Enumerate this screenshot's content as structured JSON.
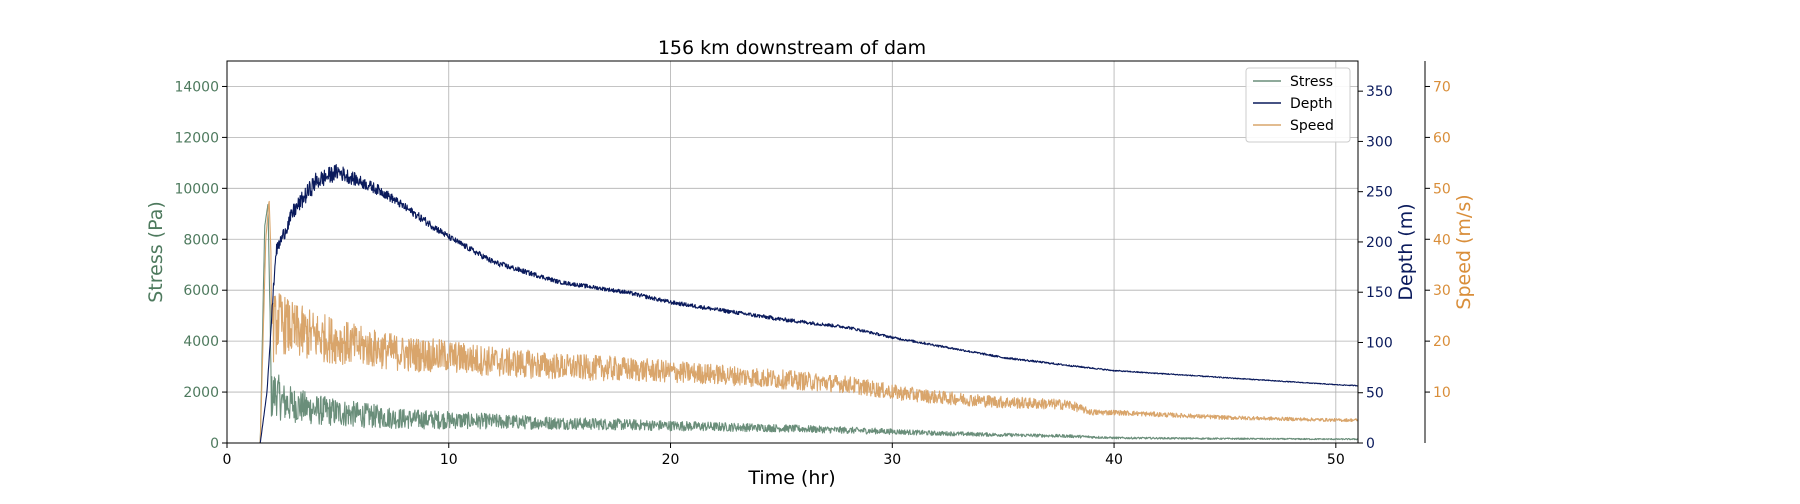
{
  "chart_data": {
    "type": "line",
    "title": "156 km downstream of dam",
    "xlabel": "Time (hr)",
    "xlim": [
      0,
      51
    ],
    "xticks": [
      0,
      10,
      20,
      30,
      40,
      50
    ],
    "grid": true,
    "legend": {
      "placement": "top-right",
      "entries": [
        "Stress",
        "Depth",
        "Speed"
      ]
    },
    "axes": {
      "stress": {
        "label": "Stress (Pa)",
        "color": "#4e7a5e",
        "lim": [
          0,
          15000
        ],
        "ticks": [
          0,
          2000,
          4000,
          6000,
          8000,
          10000,
          12000,
          14000
        ]
      },
      "depth": {
        "label": "Depth (m)",
        "color": "#0a1a5c",
        "lim": [
          0,
          380
        ],
        "ticks": [
          0,
          50,
          100,
          150,
          200,
          250,
          300,
          350
        ]
      },
      "speed": {
        "label": "Speed (m/s)",
        "color": "#d98e3a",
        "lim": [
          0,
          75
        ],
        "ticks": [
          10,
          20,
          30,
          40,
          50,
          60,
          70
        ]
      }
    },
    "series": [
      {
        "name": "Stress",
        "axis": "stress",
        "color": "#6a8e7a",
        "x": [
          0,
          1.5,
          1.7,
          1.85,
          2.0,
          2.2,
          2.5,
          3,
          4,
          5,
          6,
          8,
          10,
          12,
          15,
          18,
          20,
          22,
          25,
          28,
          30,
          32,
          35,
          38,
          40,
          45,
          50,
          51
        ],
        "y": [
          0,
          0,
          8500,
          9400,
          1800,
          2000,
          1600,
          1500,
          1300,
          1200,
          1100,
          950,
          900,
          850,
          780,
          720,
          680,
          640,
          580,
          500,
          450,
          380,
          320,
          270,
          200,
          170,
          150,
          150
        ],
        "noise": [
          0,
          0,
          0,
          0,
          900,
          900,
          800,
          700,
          600,
          550,
          500,
          400,
          350,
          300,
          250,
          220,
          200,
          180,
          150,
          130,
          110,
          90,
          70,
          60,
          40,
          30,
          25,
          25
        ]
      },
      {
        "name": "Depth",
        "axis": "depth",
        "color": "#0a1a5c",
        "x": [
          0,
          1.5,
          1.8,
          2.2,
          3,
          4,
          5,
          6,
          7,
          8,
          9,
          10,
          12,
          15,
          18,
          20,
          22,
          25,
          28,
          30,
          33,
          35,
          38,
          40,
          45,
          50,
          51
        ],
        "y": [
          0,
          0,
          50,
          190,
          230,
          260,
          270,
          260,
          250,
          235,
          220,
          205,
          180,
          160,
          150,
          140,
          133,
          123,
          115,
          105,
          93,
          85,
          77,
          72,
          65,
          58,
          57
        ],
        "noise": [
          0,
          0,
          0,
          6,
          8,
          9,
          8,
          6,
          5,
          4,
          4,
          3,
          3,
          2,
          2,
          2,
          2,
          2,
          1.5,
          1.2,
          1,
          1,
          0.8,
          0.6,
          0.5,
          0.4,
          0.4
        ]
      },
      {
        "name": "Speed",
        "axis": "speed",
        "color": "#d9a56b",
        "x": [
          0,
          1.5,
          1.75,
          1.9,
          2.05,
          2.3,
          3,
          4,
          5,
          6,
          8,
          10,
          12,
          15,
          18,
          20,
          22,
          25,
          28,
          30,
          32,
          35,
          38,
          39,
          40,
          45,
          50,
          51
        ],
        "y": [
          0,
          0,
          40,
          48,
          22,
          24,
          22,
          21,
          20,
          19,
          17.5,
          17,
          16,
          15,
          14.5,
          14,
          13.5,
          12.5,
          11.5,
          10,
          9,
          8,
          7.5,
          6,
          6,
          5,
          4.5,
          4.5
        ],
        "noise": [
          0,
          0,
          0,
          0,
          7,
          6,
          5.5,
          5,
          4.5,
          4,
          3.5,
          3.2,
          3,
          2.6,
          2.4,
          2.2,
          2,
          1.9,
          1.7,
          1.5,
          1.3,
          1.2,
          1,
          0.6,
          0.5,
          0.4,
          0.3,
          0.3
        ]
      }
    ]
  }
}
